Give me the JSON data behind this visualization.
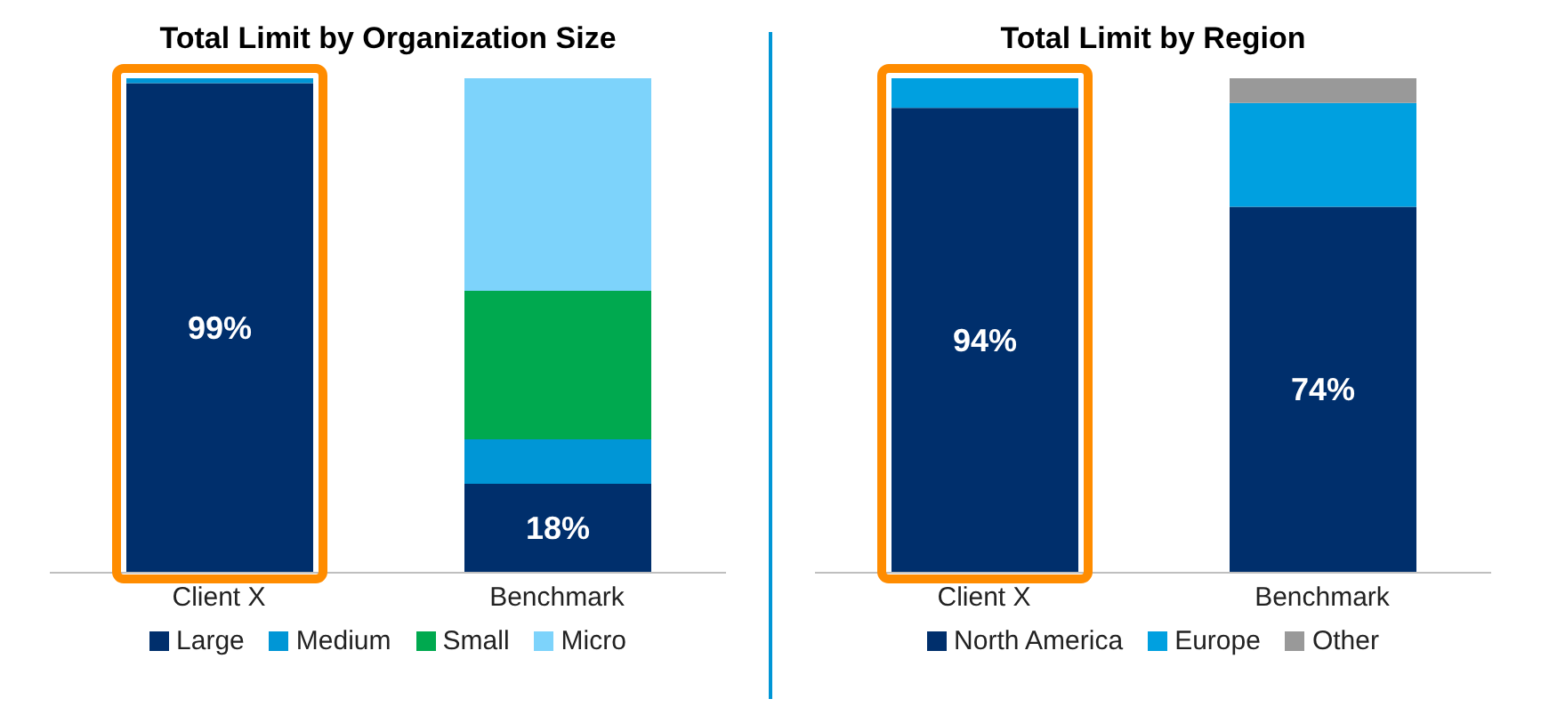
{
  "chart_data": [
    {
      "type": "bar",
      "title": "Total Limit by Organization Size",
      "categories": [
        "Client X",
        "Benchmark"
      ],
      "stacked": true,
      "legend": "bottom",
      "tick_labels": "x",
      "grid": false,
      "series": [
        {
          "name": "Large",
          "color": "#002f6c",
          "values": [
            99,
            18
          ],
          "value_labels": [
            "99%",
            "18%"
          ]
        },
        {
          "name": "Medium",
          "color": "#0096d6",
          "values": [
            1,
            9
          ],
          "value_labels": [
            null,
            null
          ]
        },
        {
          "name": "Small",
          "color": "#00a94f",
          "values": [
            0,
            30
          ],
          "value_labels": [
            null,
            null
          ]
        },
        {
          "name": "Micro",
          "color": "#7dd3fb",
          "values": [
            0,
            43
          ],
          "value_labels": [
            null,
            null
          ]
        }
      ]
    },
    {
      "type": "bar",
      "title": "Total Limit by Region",
      "categories": [
        "Client X",
        "Benchmark"
      ],
      "stacked": true,
      "legend": "bottom",
      "tick_labels": "x",
      "grid": false,
      "series": [
        {
          "name": "North America",
          "color": "#002f6c",
          "values": [
            94,
            74
          ],
          "value_labels": [
            "94%",
            "74%"
          ]
        },
        {
          "name": "Europe",
          "color": "#00a0e0",
          "values": [
            6,
            21
          ],
          "value_labels": [
            null,
            null
          ]
        },
        {
          "name": "Other",
          "color": "#999999",
          "values": [
            0,
            5
          ],
          "value_labels": [
            null,
            null
          ]
        }
      ]
    }
  ]
}
